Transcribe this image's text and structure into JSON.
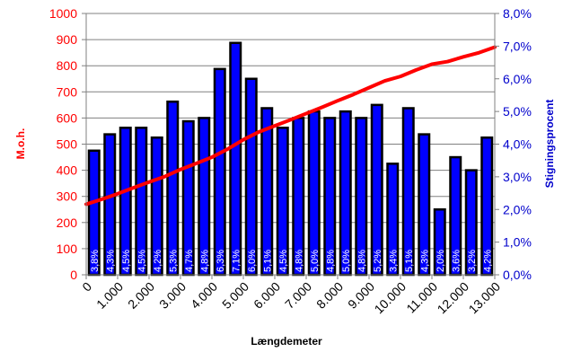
{
  "chart_data": {
    "type": "bar+line",
    "xlabel": "Længdemeter",
    "ylabel_left": "M.o.h.",
    "ylabel_right": "Stigningsprocent",
    "ylim_left": [
      0,
      1000
    ],
    "ylim_right": [
      0,
      8
    ],
    "yticks_left": [
      "0",
      "100",
      "200",
      "300",
      "400",
      "500",
      "600",
      "700",
      "800",
      "900",
      "1000"
    ],
    "yticks_right": [
      "0,0%",
      "1,0%",
      "2,0%",
      "3,0%",
      "4,0%",
      "5,0%",
      "6,0%",
      "7,0%",
      "8,0%"
    ],
    "xticks": [
      "0",
      "1.000",
      "2.000",
      "3.000",
      "4.000",
      "5.000",
      "6.000",
      "7.000",
      "8.000",
      "9.000",
      "10.000",
      "11.000",
      "12.000",
      "13.000"
    ],
    "xlim": [
      0,
      13000
    ],
    "bars": {
      "axis": "right",
      "segment_length": 500,
      "x_start": [
        0,
        500,
        1000,
        1500,
        2000,
        2500,
        3000,
        3500,
        4000,
        4500,
        5000,
        5500,
        6000,
        6500,
        7000,
        7500,
        8000,
        8500,
        9000,
        9500,
        10000,
        10500,
        11000,
        11500,
        12000,
        12500
      ],
      "values": [
        3.8,
        4.3,
        4.5,
        4.5,
        4.2,
        5.3,
        4.7,
        4.8,
        6.3,
        7.1,
        6.0,
        5.1,
        4.5,
        4.8,
        5.0,
        4.8,
        5.0,
        4.8,
        5.2,
        3.4,
        5.1,
        4.3,
        2.0,
        3.6,
        3.2,
        4.2
      ],
      "labels": [
        "3,8%",
        "4,3%",
        "4,5%",
        "4,5%",
        "4,2%",
        "5,3%",
        "4,7%",
        "4,8%",
        "6,3%",
        "7,1%",
        "6,0%",
        "5,1%",
        "4,5%",
        "4,8%",
        "5,0%",
        "4,8%",
        "5,0%",
        "4,8%",
        "5,2%",
        "3,4%",
        "5,1%",
        "4,3%",
        "2,0%",
        "3,6%",
        "3,2%",
        "4,2%"
      ],
      "color": "#0000ff",
      "border": "#000000"
    },
    "line": {
      "axis": "left",
      "color": "#ff0000",
      "x": [
        0,
        500,
        1000,
        1500,
        2000,
        2500,
        3000,
        3500,
        4000,
        4500,
        5000,
        5500,
        6000,
        6500,
        7000,
        7500,
        8000,
        8500,
        9000,
        9500,
        10000,
        10500,
        11000,
        11500,
        12000,
        12500,
        13000
      ],
      "y": [
        270,
        289,
        310,
        333,
        355,
        376,
        403,
        426,
        450,
        481,
        517,
        547,
        570,
        593,
        617,
        641,
        666,
        690,
        716,
        742,
        759,
        784,
        806,
        816,
        834,
        850,
        871
      ]
    }
  }
}
